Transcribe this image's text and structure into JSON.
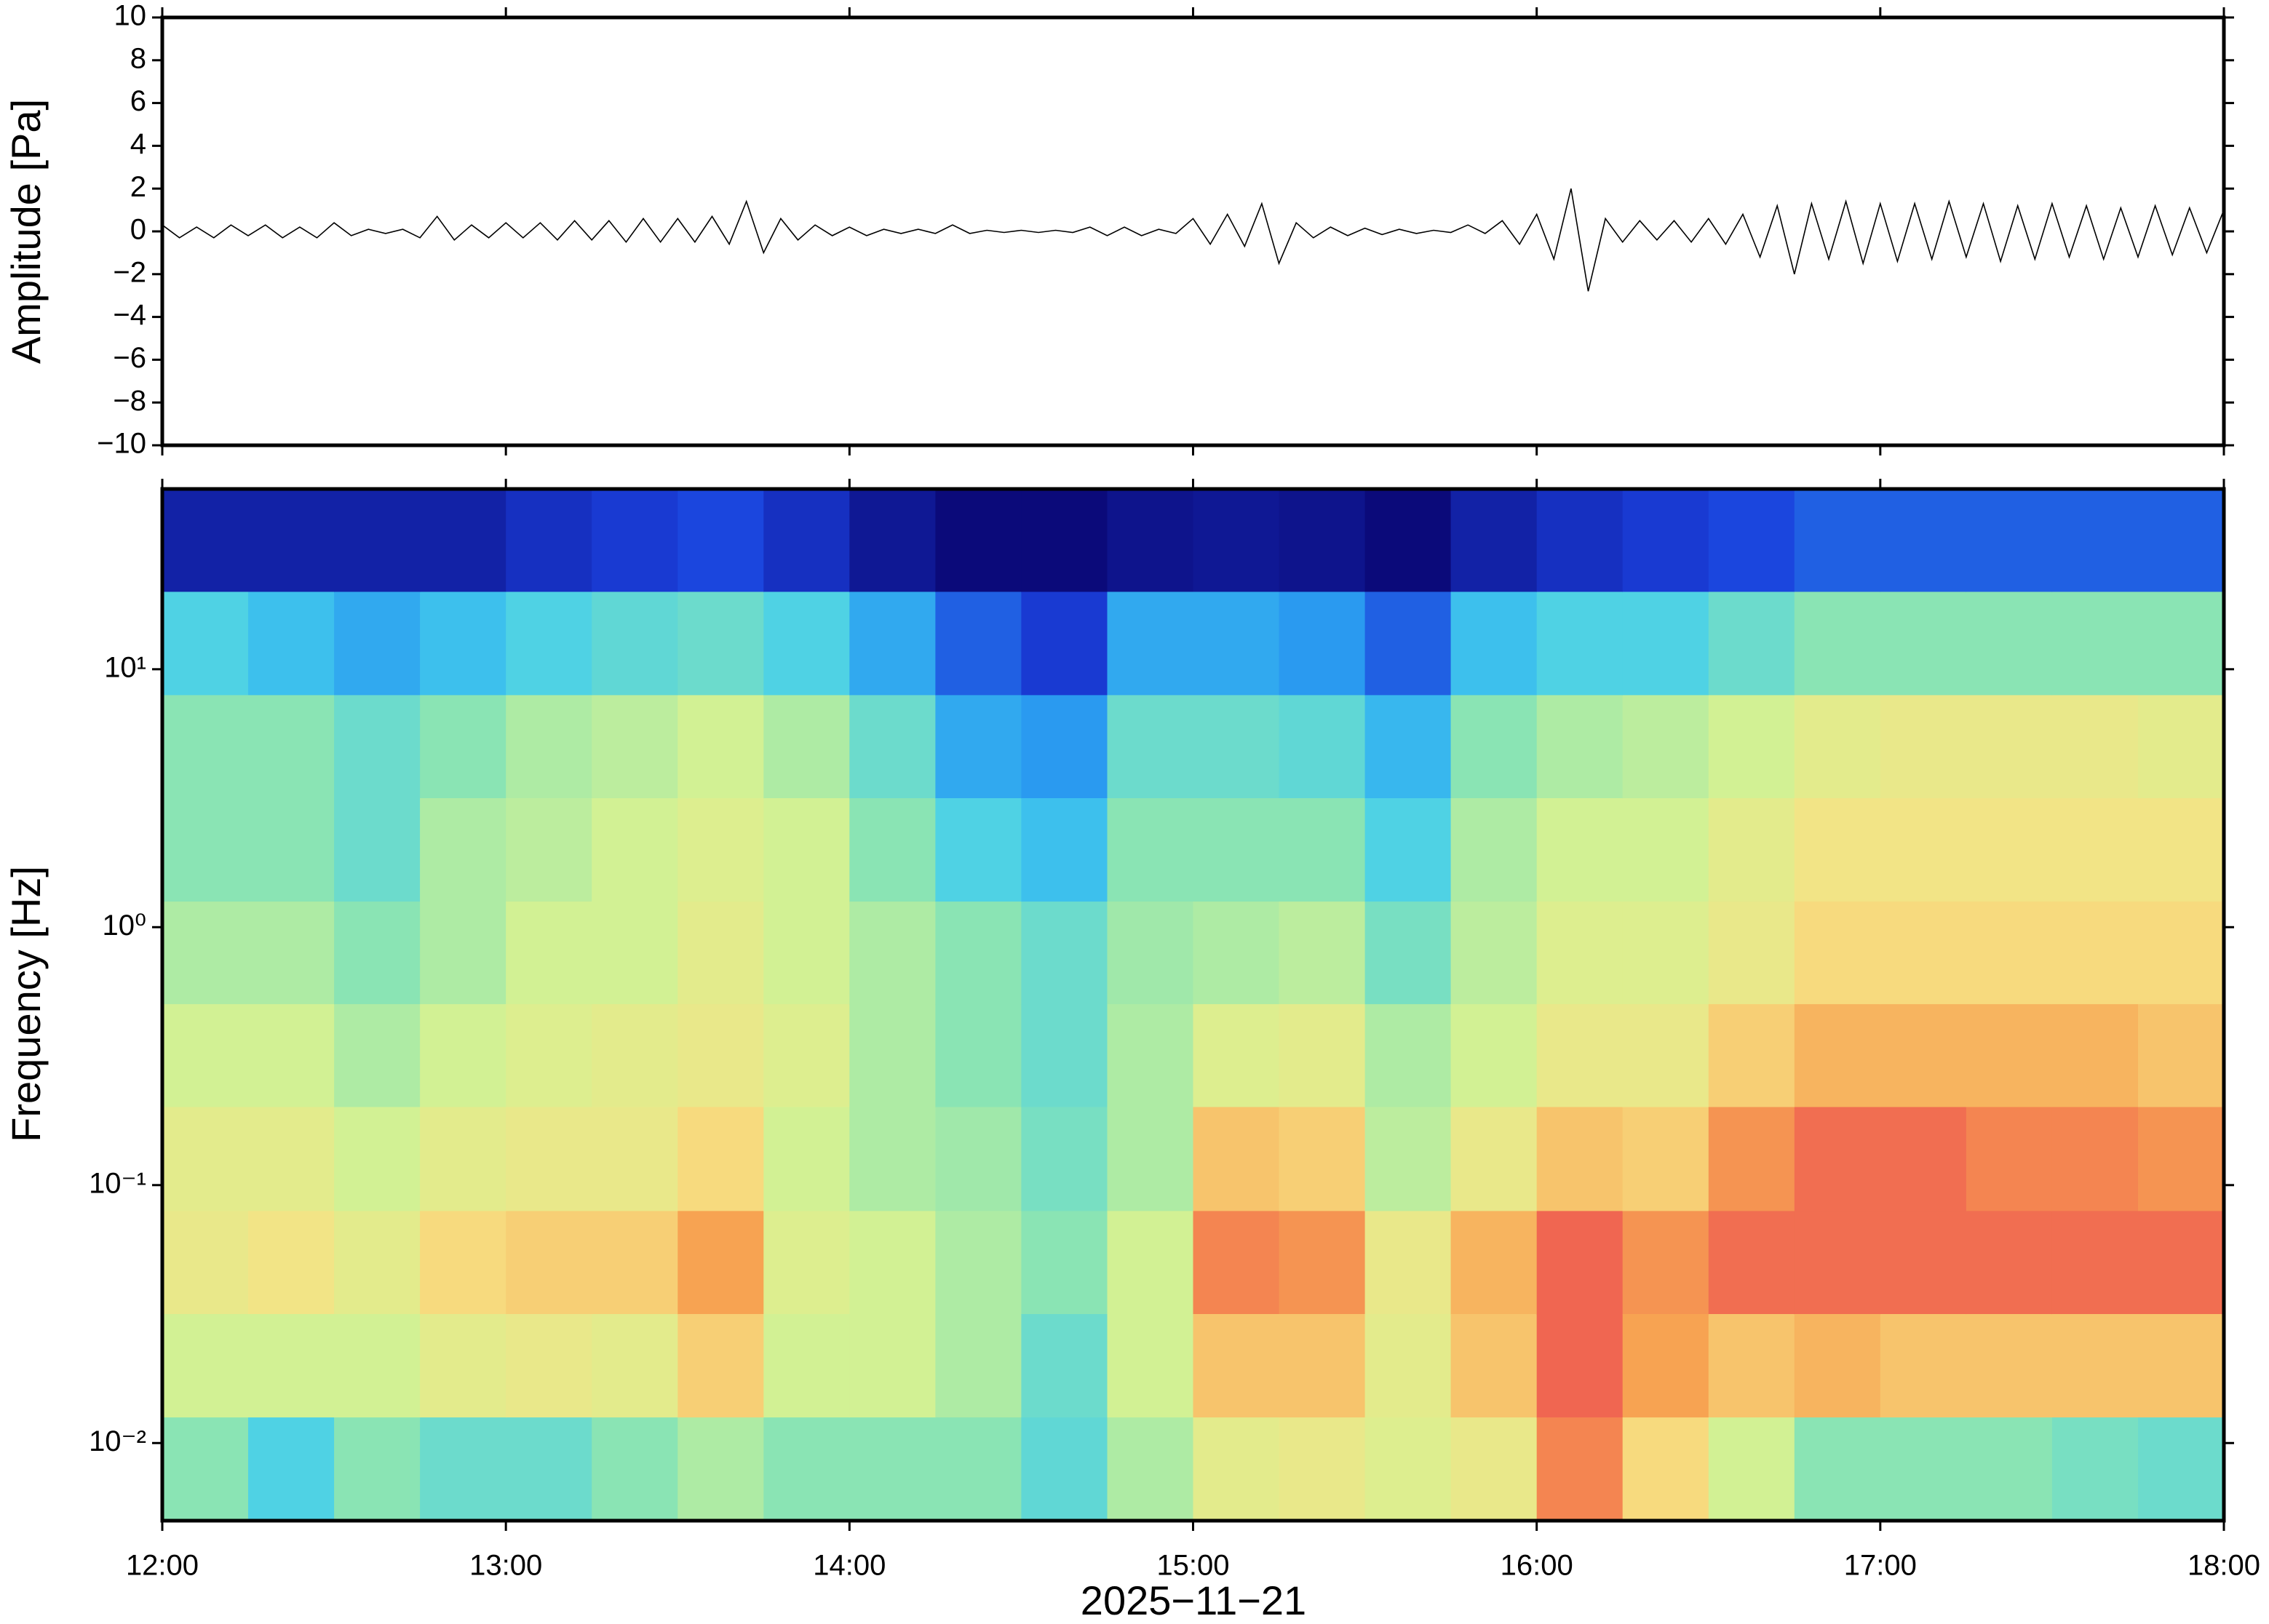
{
  "chart_data": [
    {
      "type": "line",
      "ylabel": "Amplitude [Pa]",
      "color": "#000000",
      "xlim": [
        12,
        18
      ],
      "ylim": [
        -10,
        10
      ],
      "yticks": [
        {
          "value": -10,
          "label": "−10"
        },
        {
          "value": -8,
          "label": "−8"
        },
        {
          "value": -6,
          "label": "−6"
        },
        {
          "value": -4,
          "label": "−4"
        },
        {
          "value": -2,
          "label": "−2"
        },
        0,
        2,
        4,
        6,
        8,
        10
      ],
      "x": [
        12,
        12.05,
        12.1,
        12.15,
        12.2,
        12.25,
        12.3,
        12.35,
        12.4,
        12.45,
        12.5,
        12.55,
        12.6,
        12.65,
        12.7,
        12.75,
        12.8,
        12.85,
        12.9,
        12.95,
        13,
        13.05,
        13.1,
        13.15,
        13.2,
        13.25,
        13.3,
        13.35,
        13.4,
        13.45,
        13.5,
        13.55,
        13.6,
        13.65,
        13.7,
        13.75,
        13.8,
        13.85,
        13.9,
        13.95,
        14,
        14.05,
        14.1,
        14.15,
        14.2,
        14.25,
        14.3,
        14.35,
        14.4,
        14.45,
        14.5,
        14.55,
        14.6,
        14.65,
        14.7,
        14.75,
        14.8,
        14.85,
        14.9,
        14.95,
        15,
        15.05,
        15.1,
        15.15,
        15.2,
        15.25,
        15.3,
        15.35,
        15.4,
        15.45,
        15.5,
        15.55,
        15.6,
        15.65,
        15.7,
        15.75,
        15.8,
        15.85,
        15.9,
        15.95,
        16,
        16.05,
        16.1,
        16.15,
        16.2,
        16.25,
        16.3,
        16.35,
        16.4,
        16.45,
        16.5,
        16.55,
        16.6,
        16.65,
        16.7,
        16.75,
        16.8,
        16.85,
        16.9,
        16.95,
        17,
        17.05,
        17.1,
        17.15,
        17.2,
        17.25,
        17.3,
        17.35,
        17.4,
        17.45,
        17.5,
        17.55,
        17.6,
        17.65,
        17.7,
        17.75,
        17.8,
        17.85,
        17.9,
        17.95,
        18
      ],
      "values": [
        0.3,
        -0.3,
        0.2,
        -0.3,
        0.3,
        -0.2,
        0.3,
        -0.3,
        0.2,
        -0.3,
        0.4,
        -0.2,
        0.1,
        -0.1,
        0.1,
        -0.3,
        0.7,
        -0.4,
        0.3,
        -0.3,
        0.4,
        -0.3,
        0.4,
        -0.4,
        0.5,
        -0.4,
        0.5,
        -0.5,
        0.6,
        -0.5,
        0.6,
        -0.5,
        0.7,
        -0.6,
        1.4,
        -1.0,
        0.6,
        -0.4,
        0.3,
        -0.2,
        0.2,
        -0.2,
        0.1,
        -0.1,
        0.1,
        -0.1,
        0.3,
        -0.1,
        0.05,
        -0.05,
        0.05,
        -0.05,
        0.05,
        -0.05,
        0.2,
        -0.2,
        0.2,
        -0.2,
        0.1,
        -0.1,
        0.6,
        -0.6,
        0.8,
        -0.7,
        1.3,
        -1.5,
        0.4,
        -0.3,
        0.2,
        -0.2,
        0.15,
        -0.15,
        0.1,
        -0.1,
        0.05,
        -0.05,
        0.3,
        -0.1,
        0.5,
        -0.6,
        0.8,
        -1.3,
        2.0,
        -2.8,
        0.6,
        -0.5,
        0.5,
        -0.4,
        0.5,
        -0.5,
        0.6,
        -0.6,
        0.8,
        -1.2,
        1.2,
        -2.0,
        1.3,
        -1.3,
        1.4,
        -1.5,
        1.3,
        -1.4,
        1.3,
        -1.3,
        1.4,
        -1.2,
        1.3,
        -1.4,
        1.2,
        -1.3,
        1.3,
        -1.2,
        1.2,
        -1.3,
        1.1,
        -1.2,
        1.2,
        -1.1,
        1.1,
        -1.0,
        1.0
      ]
    },
    {
      "type": "heatmap",
      "ylabel": "Frequency [Hz]",
      "xlabel": "2025−11−21",
      "log_y": true,
      "xlim": [
        12,
        18
      ],
      "xticks": [
        {
          "value": 12,
          "label": "12:00"
        },
        {
          "value": 13,
          "label": "13:00"
        },
        {
          "value": 14,
          "label": "14:00"
        },
        {
          "value": 15,
          "label": "15:00"
        },
        {
          "value": 16,
          "label": "16:00"
        },
        {
          "value": 17,
          "label": "17:00"
        },
        {
          "value": 18,
          "label": "18:00"
        }
      ],
      "ylim": [
        0.005,
        50
      ],
      "yticks": [
        {
          "value": 0.01,
          "label": "10⁻²"
        },
        {
          "value": 0.1,
          "label": "10⁻¹"
        },
        {
          "value": 1,
          "label": "10⁰"
        },
        {
          "value": 10,
          "label": "10¹"
        }
      ],
      "zlim": [
        0,
        100
      ],
      "colormap": [
        "#0b0a7a",
        "#1a3fdc",
        "#2a9cf0",
        "#45cfec",
        "#86e3b6",
        "#d6f292",
        "#f7e184",
        "#f7a552",
        "#ee5050",
        "#f6a8b6"
      ],
      "x": [
        12.125,
        12.375,
        12.625,
        12.875,
        13.125,
        13.375,
        13.625,
        13.875,
        14.125,
        14.375,
        14.625,
        14.875,
        15.125,
        15.375,
        15.625,
        15.875,
        16.125,
        16.375,
        16.625,
        16.875,
        17.125,
        17.375,
        17.625,
        17.875
      ],
      "y": [
        31.6,
        12.6,
        5,
        2,
        0.79,
        0.32,
        0.126,
        0.05,
        0.02,
        0.0079
      ],
      "values": [
        [
          5,
          35,
          45,
          45,
          50,
          55,
          60,
          62,
          55,
          45
        ],
        [
          5,
          30,
          45,
          45,
          50,
          55,
          60,
          65,
          55,
          35
        ],
        [
          5,
          25,
          40,
          40,
          45,
          50,
          55,
          60,
          55,
          45
        ],
        [
          5,
          30,
          45,
          50,
          50,
          55,
          60,
          68,
          60,
          40
        ],
        [
          8,
          35,
          50,
          52,
          55,
          58,
          62,
          70,
          62,
          40
        ],
        [
          10,
          38,
          52,
          55,
          55,
          60,
          62,
          70,
          60,
          45
        ],
        [
          12,
          40,
          55,
          58,
          60,
          62,
          68,
          78,
          70,
          50
        ],
        [
          8,
          35,
          50,
          55,
          55,
          58,
          55,
          58,
          55,
          45
        ],
        [
          3,
          25,
          40,
          45,
          50,
          50,
          50,
          55,
          55,
          45
        ],
        [
          0,
          15,
          25,
          35,
          45,
          45,
          48,
          50,
          50,
          45
        ],
        [
          0,
          10,
          22,
          30,
          40,
          40,
          42,
          45,
          40,
          38
        ],
        [
          2,
          25,
          40,
          45,
          48,
          50,
          50,
          55,
          55,
          50
        ],
        [
          3,
          25,
          40,
          45,
          50,
          58,
          72,
          82,
          72,
          60
        ],
        [
          2,
          22,
          38,
          45,
          52,
          60,
          70,
          80,
          72,
          62
        ],
        [
          0,
          15,
          28,
          35,
          42,
          50,
          52,
          62,
          60,
          58
        ],
        [
          5,
          30,
          45,
          50,
          52,
          55,
          62,
          75,
          72,
          62
        ],
        [
          8,
          35,
          50,
          55,
          58,
          62,
          72,
          86,
          86,
          82
        ],
        [
          10,
          35,
          52,
          55,
          58,
          62,
          70,
          80,
          78,
          68
        ],
        [
          12,
          40,
          55,
          60,
          62,
          70,
          80,
          85,
          72,
          55
        ],
        [
          15,
          45,
          60,
          65,
          68,
          75,
          85,
          85,
          75,
          45
        ],
        [
          15,
          45,
          62,
          65,
          68,
          75,
          85,
          85,
          72,
          45
        ],
        [
          15,
          45,
          62,
          65,
          68,
          75,
          82,
          85,
          72,
          45
        ],
        [
          15,
          45,
          62,
          65,
          68,
          75,
          82,
          85,
          72,
          42
        ],
        [
          15,
          45,
          60,
          65,
          68,
          72,
          80,
          85,
          72,
          40
        ]
      ]
    }
  ]
}
